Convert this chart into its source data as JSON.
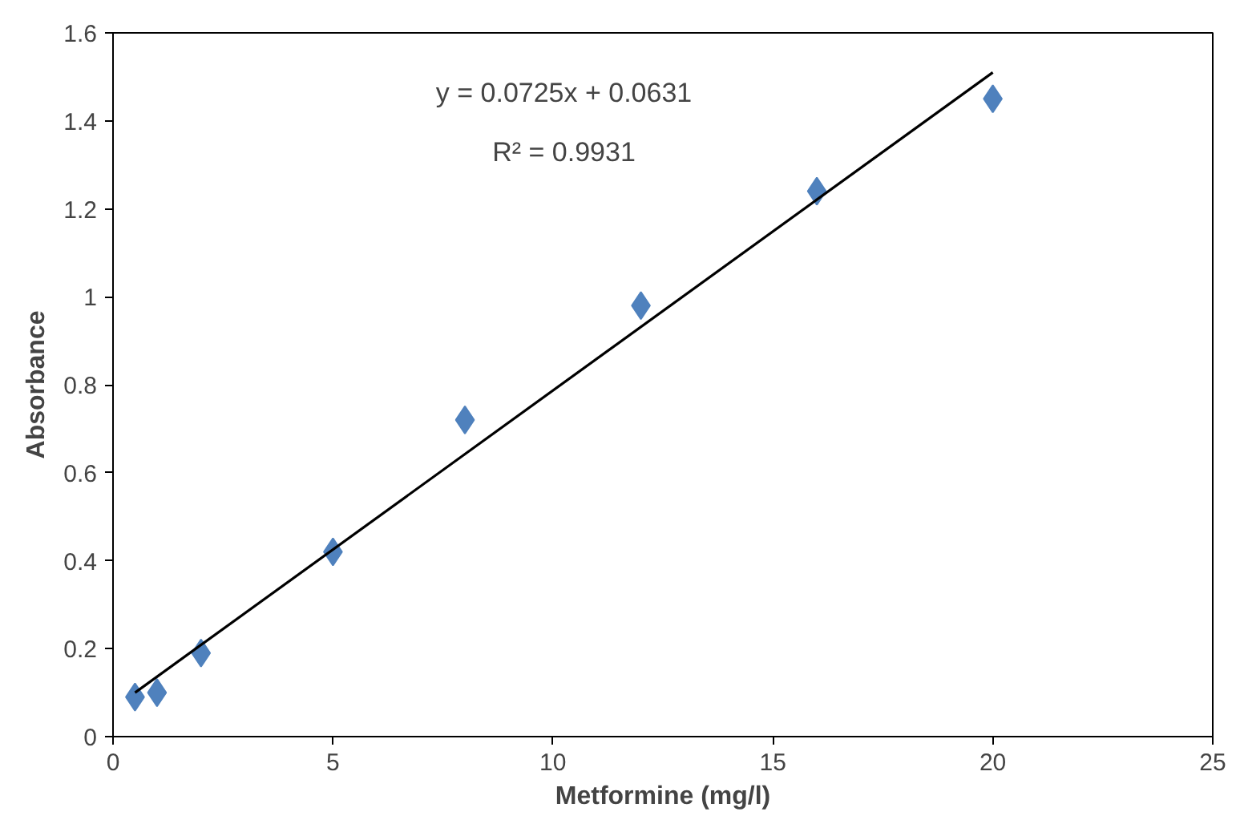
{
  "chart_data": {
    "type": "scatter",
    "xlabel": "Metformine (mg/l)",
    "ylabel": "Absorbance",
    "xlim": [
      0,
      25
    ],
    "xticks": [
      0,
      5,
      10,
      15,
      20,
      25
    ],
    "ylim": [
      0,
      1.6
    ],
    "yticks": [
      0,
      0.2,
      0.4,
      0.6,
      0.8,
      1,
      1.2,
      1.4,
      1.6
    ],
    "grid": false,
    "marker": "diamond",
    "series": [
      {
        "color": "#4f81bd",
        "x": [
          0.5,
          1,
          2,
          5,
          8,
          12,
          16,
          20
        ],
        "values": [
          0.09,
          0.1,
          0.19,
          0.42,
          0.72,
          0.98,
          1.24,
          1.45
        ]
      },
      {
        "type": "line",
        "marker": "none",
        "color": "#000000",
        "x": [
          0.5,
          20
        ],
        "values": [
          0.1,
          1.51
        ]
      }
    ],
    "annotations": [
      "y = 0.0725x + 0.0631",
      "R² = 0.9931"
    ]
  }
}
